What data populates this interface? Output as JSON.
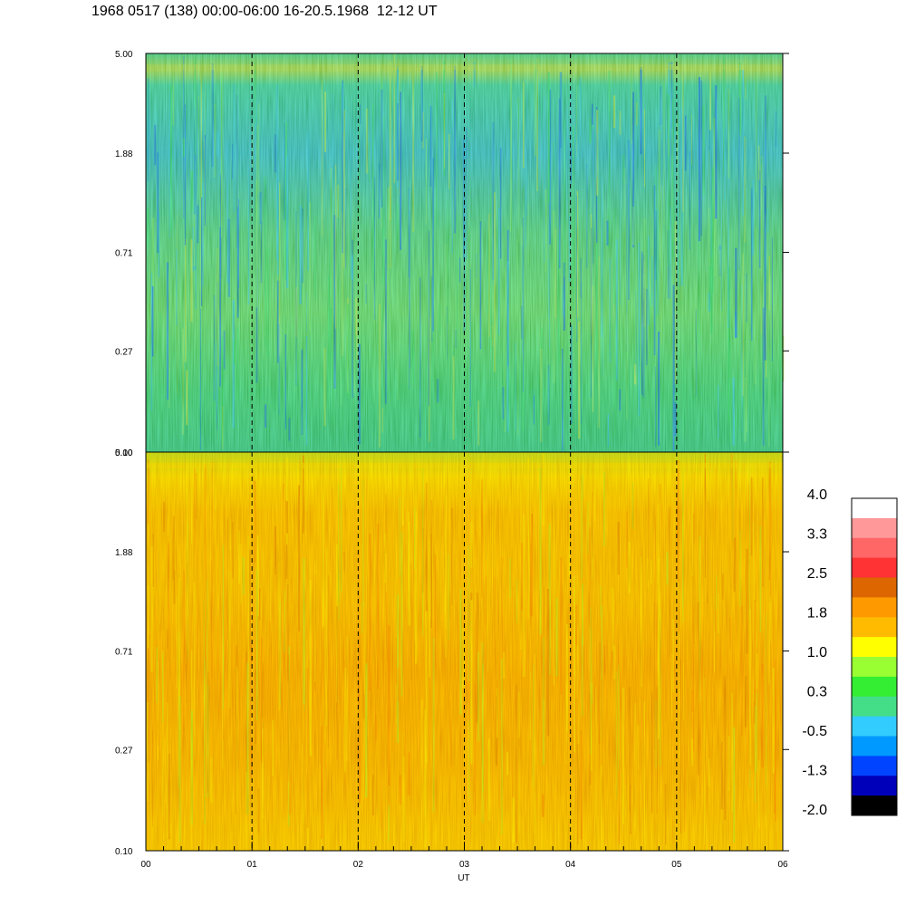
{
  "title": "1968 0517 (138) 00:00-06:00 16-20.5.1968  12-12 UT",
  "chart_data": [
    {
      "type": "heatmap",
      "panel": "upper",
      "x_range": [
        "00",
        "06"
      ],
      "y_scale": "log",
      "y_range": [
        0.1,
        5.0
      ],
      "y_ticks": [
        "5.00",
        "1.88",
        "0.71",
        "0.27",
        "0.10"
      ],
      "dominant_levels": [
        "0.3",
        "-0.5",
        "-1.3",
        "1.0"
      ],
      "hour_markers": [
        "01",
        "02",
        "03",
        "04",
        "05"
      ]
    },
    {
      "type": "heatmap",
      "panel": "lower",
      "x_label": "UT",
      "x_ticks": [
        "00",
        "01",
        "02",
        "03",
        "04",
        "05",
        "06"
      ],
      "y_scale": "log",
      "y_range": [
        0.1,
        5.0
      ],
      "y_ticks": [
        "5.00",
        "1.88",
        "0.71",
        "0.27",
        "0.10"
      ],
      "dominant_levels": [
        "1.8",
        "1.0",
        "2.5"
      ],
      "hour_markers": [
        "01",
        "02",
        "03",
        "04",
        "05"
      ]
    }
  ],
  "colorbar": {
    "labels": [
      "4.0",
      "3.3",
      "2.5",
      "1.8",
      "1.0",
      "0.3",
      "-0.5",
      "-1.3",
      "-2.0"
    ],
    "colors": [
      "#ffffff",
      "#ff9999",
      "#ff6666",
      "#ff3333",
      "#dd6600",
      "#ff9900",
      "#ffbb00",
      "#ffff00",
      "#99ff33",
      "#33ee33",
      "#44dd88",
      "#33ccff",
      "#0099ff",
      "#0044ff",
      "#0000bb",
      "#000000"
    ]
  }
}
